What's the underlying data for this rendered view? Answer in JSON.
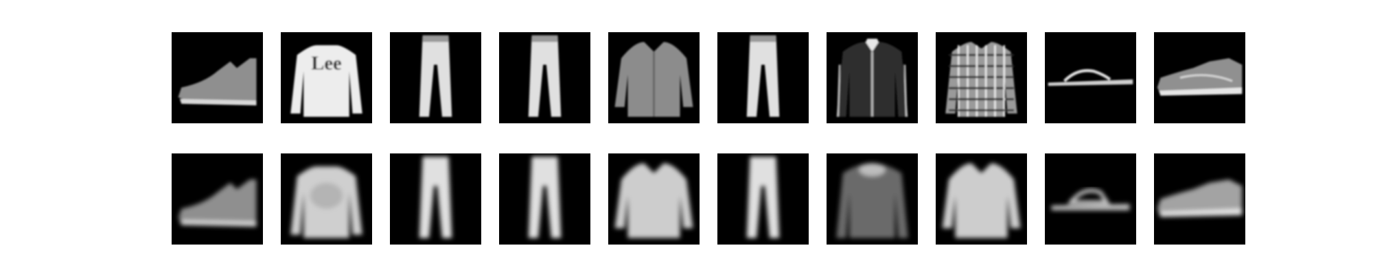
{
  "figure": {
    "background": "#ffffff",
    "panel_background": "#000000",
    "rows": [
      {
        "kind": "original",
        "items": [
          {
            "item": "ankle-boot",
            "logo_text": ""
          },
          {
            "item": "sweater",
            "logo_text": "Lee"
          },
          {
            "item": "trousers",
            "logo_text": ""
          },
          {
            "item": "trousers",
            "logo_text": ""
          },
          {
            "item": "shirt",
            "logo_text": ""
          },
          {
            "item": "trousers",
            "logo_text": ""
          },
          {
            "item": "jacket",
            "logo_text": ""
          },
          {
            "item": "plaid-shirt",
            "logo_text": ""
          },
          {
            "item": "sandal",
            "logo_text": ""
          },
          {
            "item": "sneaker",
            "logo_text": ""
          }
        ]
      },
      {
        "kind": "reconstruction",
        "items": [
          {
            "item": "ankle-boot",
            "logo_text": ""
          },
          {
            "item": "sweater",
            "logo_text": ""
          },
          {
            "item": "trousers",
            "logo_text": ""
          },
          {
            "item": "trousers",
            "logo_text": ""
          },
          {
            "item": "shirt",
            "logo_text": ""
          },
          {
            "item": "trousers",
            "logo_text": ""
          },
          {
            "item": "jacket",
            "logo_text": ""
          },
          {
            "item": "shirt",
            "logo_text": ""
          },
          {
            "item": "sandal",
            "logo_text": ""
          },
          {
            "item": "sneaker",
            "logo_text": ""
          }
        ]
      }
    ]
  }
}
